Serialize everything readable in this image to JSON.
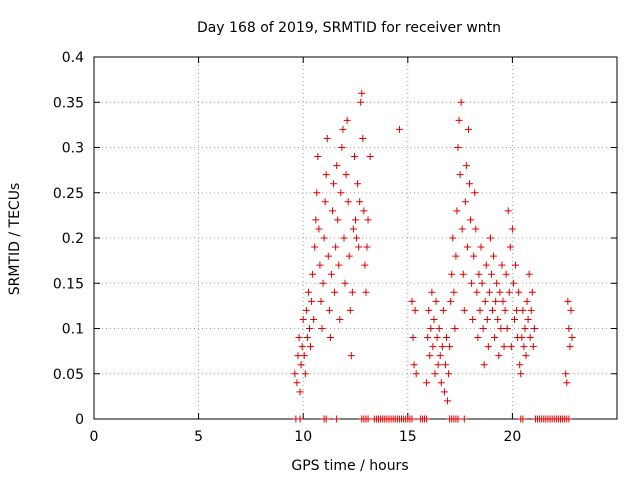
{
  "chart_data": {
    "type": "scatter",
    "title": "Day 168 of 2019, SRMTID for receiver wntn",
    "xlabel": "GPS time / hours",
    "ylabel": "SRMTID / TECUs",
    "xlim": [
      0,
      25
    ],
    "ylim": [
      0,
      0.4
    ],
    "xticks": [
      "0",
      "5",
      "10",
      "15",
      "20"
    ],
    "xtick_values": [
      0,
      5,
      10,
      15,
      20
    ],
    "yticks": [
      "0",
      "0.05",
      "0.1",
      "0.15",
      "0.2",
      "0.25",
      "0.3",
      "0.35",
      "0.4"
    ],
    "ytick_values": [
      0,
      0.05,
      0.1,
      0.15,
      0.2,
      0.25,
      0.3,
      0.35,
      0.4
    ],
    "grid": true,
    "marker": "+",
    "color": "#e00000",
    "series": [
      {
        "name": "SRMTID",
        "points": [
          [
            9.6,
            0.05
          ],
          [
            9.7,
            0.04
          ],
          [
            9.75,
            0.07
          ],
          [
            9.8,
            0.09
          ],
          [
            9.85,
            0.03
          ],
          [
            9.9,
            0.06
          ],
          [
            9.95,
            0.08
          ],
          [
            10.0,
            0.11
          ],
          [
            10.05,
            0.07
          ],
          [
            10.1,
            0.05
          ],
          [
            10.15,
            0.12
          ],
          [
            10.2,
            0.09
          ],
          [
            10.25,
            0.14
          ],
          [
            10.3,
            0.1
          ],
          [
            10.35,
            0.08
          ],
          [
            10.4,
            0.13
          ],
          [
            10.45,
            0.16
          ],
          [
            10.5,
            0.11
          ],
          [
            10.55,
            0.19
          ],
          [
            10.6,
            0.22
          ],
          [
            10.65,
            0.25
          ],
          [
            10.7,
            0.29
          ],
          [
            10.75,
            0.21
          ],
          [
            10.8,
            0.17
          ],
          [
            10.85,
            0.13
          ],
          [
            10.9,
            0.1
          ],
          [
            10.95,
            0.15
          ],
          [
            11.0,
            0.2
          ],
          [
            11.05,
            0.24
          ],
          [
            11.1,
            0.27
          ],
          [
            11.15,
            0.31
          ],
          [
            11.2,
            0.18
          ],
          [
            11.25,
            0.12
          ],
          [
            11.3,
            0.09
          ],
          [
            11.35,
            0.16
          ],
          [
            11.4,
            0.23
          ],
          [
            11.45,
            0.26
          ],
          [
            11.5,
            0.14
          ],
          [
            11.55,
            0.19
          ],
          [
            11.6,
            0.28
          ],
          [
            11.65,
            0.22
          ],
          [
            11.7,
            0.17
          ],
          [
            11.75,
            0.11
          ],
          [
            11.8,
            0.25
          ],
          [
            11.85,
            0.3
          ],
          [
            11.9,
            0.32
          ],
          [
            11.95,
            0.2
          ],
          [
            12.0,
            0.15
          ],
          [
            12.05,
            0.27
          ],
          [
            12.1,
            0.33
          ],
          [
            12.15,
            0.24
          ],
          [
            12.2,
            0.18
          ],
          [
            12.25,
            0.12
          ],
          [
            12.3,
            0.07
          ],
          [
            12.35,
            0.14
          ],
          [
            12.4,
            0.21
          ],
          [
            12.45,
            0.29
          ],
          [
            12.5,
            0.22
          ],
          [
            12.55,
            0.2
          ],
          [
            12.6,
            0.26
          ],
          [
            12.65,
            0.19
          ],
          [
            12.7,
            0.24
          ],
          [
            12.75,
            0.35
          ],
          [
            12.8,
            0.36
          ],
          [
            12.85,
            0.31
          ],
          [
            12.9,
            0.23
          ],
          [
            12.95,
            0.17
          ],
          [
            13.0,
            0.14
          ],
          [
            13.05,
            0.19
          ],
          [
            13.1,
            0.22
          ],
          [
            13.2,
            0.29
          ],
          [
            14.6,
            0.32
          ],
          [
            15.2,
            0.13
          ],
          [
            15.25,
            0.09
          ],
          [
            15.3,
            0.06
          ],
          [
            15.35,
            0.12
          ],
          [
            15.4,
            0.05
          ],
          [
            15.9,
            0.04
          ],
          [
            15.95,
            0.09
          ],
          [
            16.0,
            0.12
          ],
          [
            16.05,
            0.07
          ],
          [
            16.1,
            0.1
          ],
          [
            16.15,
            0.14
          ],
          [
            16.2,
            0.08
          ],
          [
            16.25,
            0.11
          ],
          [
            16.3,
            0.05
          ],
          [
            16.35,
            0.13
          ],
          [
            16.4,
            0.09
          ],
          [
            16.45,
            0.06
          ],
          [
            16.5,
            0.1
          ],
          [
            16.55,
            0.07
          ],
          [
            16.6,
            0.04
          ],
          [
            16.65,
            0.08
          ],
          [
            16.7,
            0.12
          ],
          [
            16.75,
            0.03
          ],
          [
            16.8,
            0.06
          ],
          [
            16.85,
            0.09
          ],
          [
            16.9,
            0.02
          ],
          [
            16.95,
            0.05
          ],
          [
            17.0,
            0.08
          ],
          [
            17.05,
            0.13
          ],
          [
            17.1,
            0.16
          ],
          [
            17.15,
            0.2
          ],
          [
            17.2,
            0.14
          ],
          [
            17.25,
            0.1
          ],
          [
            17.3,
            0.18
          ],
          [
            17.35,
            0.23
          ],
          [
            17.4,
            0.3
          ],
          [
            17.45,
            0.33
          ],
          [
            17.5,
            0.27
          ],
          [
            17.55,
            0.35
          ],
          [
            17.6,
            0.21
          ],
          [
            17.65,
            0.16
          ],
          [
            17.7,
            0.12
          ],
          [
            17.75,
            0.24
          ],
          [
            17.8,
            0.28
          ],
          [
            17.85,
            0.19
          ],
          [
            17.9,
            0.32
          ],
          [
            17.95,
            0.26
          ],
          [
            18.0,
            0.22
          ],
          [
            18.05,
            0.15
          ],
          [
            18.1,
            0.11
          ],
          [
            18.15,
            0.18
          ],
          [
            18.2,
            0.25
          ],
          [
            18.25,
            0.21
          ],
          [
            18.3,
            0.14
          ],
          [
            18.35,
            0.09
          ],
          [
            18.4,
            0.16
          ],
          [
            18.45,
            0.12
          ],
          [
            18.5,
            0.19
          ],
          [
            18.55,
            0.15
          ],
          [
            18.6,
            0.1
          ],
          [
            18.65,
            0.06
          ],
          [
            18.7,
            0.13
          ],
          [
            18.75,
            0.17
          ],
          [
            18.8,
            0.11
          ],
          [
            18.85,
            0.08
          ],
          [
            18.9,
            0.14
          ],
          [
            18.95,
            0.2
          ],
          [
            19.0,
            0.16
          ],
          [
            19.05,
            0.12
          ],
          [
            19.1,
            0.18
          ],
          [
            19.15,
            0.09
          ],
          [
            19.2,
            0.13
          ],
          [
            19.25,
            0.15
          ],
          [
            19.3,
            0.11
          ],
          [
            19.35,
            0.07
          ],
          [
            19.4,
            0.14
          ],
          [
            19.45,
            0.1
          ],
          [
            19.5,
            0.17
          ],
          [
            19.55,
            0.13
          ],
          [
            19.6,
            0.08
          ],
          [
            19.65,
            0.12
          ],
          [
            19.7,
            0.16
          ],
          [
            19.75,
            0.1
          ],
          [
            19.8,
            0.23
          ],
          [
            19.85,
            0.14
          ],
          [
            19.9,
            0.19
          ],
          [
            19.95,
            0.08
          ],
          [
            20.0,
            0.21
          ],
          [
            20.05,
            0.15
          ],
          [
            20.1,
            0.11
          ],
          [
            20.15,
            0.17
          ],
          [
            20.2,
            0.12
          ],
          [
            20.25,
            0.09
          ],
          [
            20.3,
            0.14
          ],
          [
            20.35,
            0.06
          ],
          [
            20.4,
            0.05
          ],
          [
            20.45,
            0.09
          ],
          [
            20.5,
            0.12
          ],
          [
            20.55,
            0.08
          ],
          [
            20.6,
            0.1
          ],
          [
            20.65,
            0.07
          ],
          [
            20.7,
            0.13
          ],
          [
            20.75,
            0.11
          ],
          [
            20.8,
            0.16
          ],
          [
            20.85,
            0.09
          ],
          [
            20.9,
            0.12
          ],
          [
            20.95,
            0.14
          ],
          [
            21.0,
            0.08
          ],
          [
            21.05,
            0.1
          ],
          [
            22.55,
            0.05
          ],
          [
            22.6,
            0.04
          ],
          [
            22.65,
            0.13
          ],
          [
            22.7,
            0.1
          ],
          [
            22.75,
            0.08
          ],
          [
            22.8,
            0.12
          ],
          [
            22.85,
            0.09
          ],
          [
            9.65,
            0.0
          ],
          [
            9.85,
            0.0
          ],
          [
            11.0,
            0.0
          ],
          [
            11.1,
            0.0
          ],
          [
            11.6,
            0.0
          ],
          [
            12.8,
            0.0
          ],
          [
            12.9,
            0.0
          ],
          [
            13.0,
            0.0
          ],
          [
            13.1,
            0.0
          ],
          [
            13.4,
            0.0
          ],
          [
            13.5,
            0.0
          ],
          [
            13.6,
            0.0
          ],
          [
            13.7,
            0.0
          ],
          [
            13.8,
            0.0
          ],
          [
            13.9,
            0.0
          ],
          [
            14.0,
            0.0
          ],
          [
            14.1,
            0.0
          ],
          [
            14.2,
            0.0
          ],
          [
            14.3,
            0.0
          ],
          [
            14.4,
            0.0
          ],
          [
            14.5,
            0.0
          ],
          [
            14.6,
            0.0
          ],
          [
            14.7,
            0.0
          ],
          [
            14.8,
            0.0
          ],
          [
            14.9,
            0.0
          ],
          [
            15.0,
            0.0
          ],
          [
            15.1,
            0.0
          ],
          [
            15.2,
            0.0
          ],
          [
            15.6,
            0.0
          ],
          [
            15.7,
            0.0
          ],
          [
            15.8,
            0.0
          ],
          [
            15.9,
            0.0
          ],
          [
            17.0,
            0.0
          ],
          [
            17.1,
            0.0
          ],
          [
            17.2,
            0.0
          ],
          [
            17.3,
            0.0
          ],
          [
            17.4,
            0.0
          ],
          [
            17.7,
            0.0
          ],
          [
            20.4,
            0.0
          ],
          [
            20.5,
            0.0
          ],
          [
            21.1,
            0.0
          ],
          [
            21.2,
            0.0
          ],
          [
            21.3,
            0.0
          ],
          [
            21.4,
            0.0
          ],
          [
            21.5,
            0.0
          ],
          [
            21.6,
            0.0
          ],
          [
            21.7,
            0.0
          ],
          [
            21.8,
            0.0
          ],
          [
            21.9,
            0.0
          ],
          [
            22.0,
            0.0
          ],
          [
            22.1,
            0.0
          ],
          [
            22.2,
            0.0
          ],
          [
            22.3,
            0.0
          ],
          [
            22.4,
            0.0
          ],
          [
            22.5,
            0.0
          ],
          [
            22.6,
            0.0
          ],
          [
            22.7,
            0.0
          ]
        ]
      }
    ]
  }
}
